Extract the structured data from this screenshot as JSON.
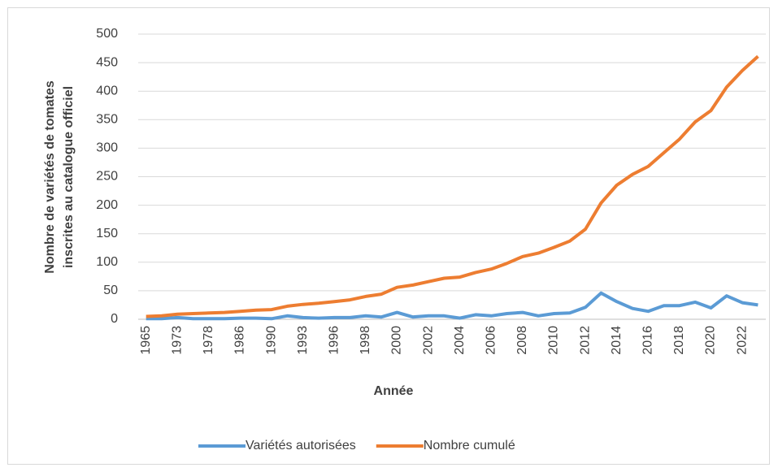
{
  "chart_data": {
    "type": "line",
    "ylabel": [
      "Nombre de variétés de tomates",
      "inscrites au catalogue officiel"
    ],
    "xlabel": "Année",
    "categories": [
      "1965",
      null,
      "1973",
      null,
      "1978",
      null,
      "1986",
      null,
      "1990",
      null,
      "1993",
      null,
      "1996",
      null,
      "1998",
      null,
      "2000",
      null,
      "2002",
      null,
      "2004",
      null,
      "2006",
      null,
      "2008",
      null,
      "2010",
      null,
      "2012",
      null,
      "2014",
      null,
      "2016",
      null,
      "2018",
      null,
      "2020",
      null,
      "2022",
      null
    ],
    "series": [
      {
        "name": "Variétés autorisées",
        "color": "#5b9bd5",
        "values": [
          1,
          1,
          3,
          1,
          1,
          1,
          2,
          2,
          1,
          6,
          3,
          2,
          3,
          3,
          6,
          4,
          12,
          4,
          6,
          6,
          2,
          8,
          6,
          10,
          12,
          6,
          10,
          11,
          21,
          46,
          31,
          19,
          14,
          24,
          24,
          30,
          20,
          41,
          29,
          25
        ]
      },
      {
        "name": "Nombre cumulé",
        "color": "#ed7d31",
        "values": [
          5,
          6,
          9,
          10,
          11,
          12,
          14,
          16,
          17,
          23,
          26,
          28,
          31,
          34,
          40,
          44,
          56,
          60,
          66,
          72,
          74,
          82,
          88,
          98,
          110,
          116,
          126,
          137,
          158,
          204,
          235,
          254,
          268,
          292,
          316,
          346,
          366,
          407,
          436,
          461
        ]
      }
    ],
    "ylim": [
      0,
      500
    ],
    "yticks": [
      0,
      50,
      100,
      150,
      200,
      250,
      300,
      350,
      400,
      450,
      500
    ],
    "grid": true,
    "legend": "bottom"
  }
}
